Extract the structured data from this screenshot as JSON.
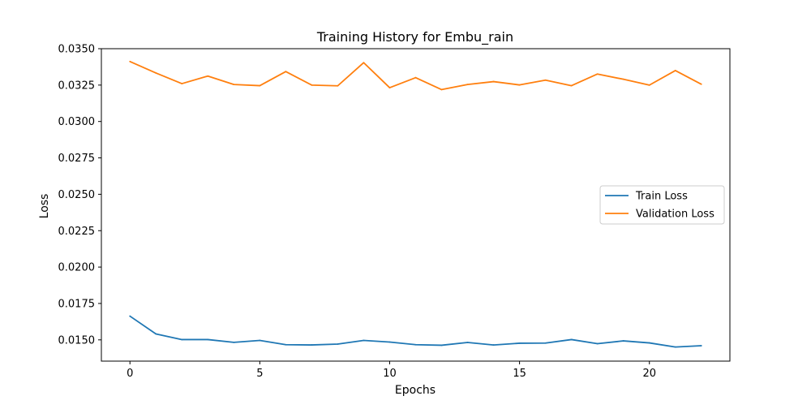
{
  "chart_data": {
    "type": "line",
    "title": "Training History for Embu_rain",
    "xlabel": "Epochs",
    "ylabel": "Loss",
    "xlim": [
      -1.1,
      23.1
    ],
    "ylim": [
      0.01354,
      0.035
    ],
    "x_ticks": [
      0,
      5,
      10,
      15,
      20
    ],
    "y_ticks": [
      "0.0150",
      "0.0175",
      "0.0200",
      "0.0225",
      "0.0250",
      "0.0275",
      "0.0300",
      "0.0325",
      "0.0350"
    ],
    "grid": false,
    "legend_position": "center-right",
    "x": [
      0,
      1,
      2,
      3,
      4,
      5,
      6,
      7,
      8,
      9,
      10,
      11,
      12,
      13,
      14,
      15,
      16,
      17,
      18,
      19,
      20,
      21,
      22
    ],
    "series": [
      {
        "name": "Train Loss",
        "color": "#1f77b4",
        "values": [
          0.01663,
          0.01541,
          0.01502,
          0.01502,
          0.01483,
          0.01496,
          0.01467,
          0.01465,
          0.01471,
          0.01496,
          0.01485,
          0.01467,
          0.01463,
          0.01482,
          0.01465,
          0.01477,
          0.01478,
          0.01502,
          0.01474,
          0.01493,
          0.01479,
          0.01451,
          0.0146
        ]
      },
      {
        "name": "Validation Loss",
        "color": "#ff7f0e",
        "values": [
          0.03412,
          0.03333,
          0.0326,
          0.03312,
          0.03254,
          0.03246,
          0.03343,
          0.0325,
          0.03245,
          0.03404,
          0.03232,
          0.03301,
          0.03219,
          0.03254,
          0.03274,
          0.03251,
          0.03284,
          0.03246,
          0.03326,
          0.0329,
          0.0325,
          0.0335,
          0.03256
        ]
      }
    ]
  }
}
